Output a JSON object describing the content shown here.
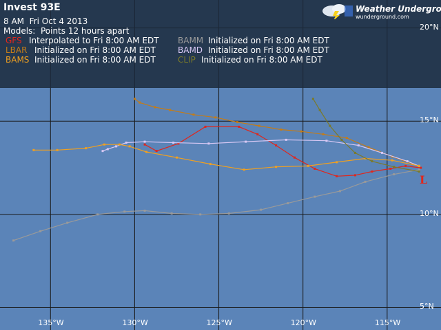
{
  "title": "Invest 93E",
  "subtitle": "8 AM  Fri Oct 4 2013",
  "models_line": "Models:  Points 12 hours apart",
  "legend_rows": [
    [
      {
        "name": "GFS",
        "desc": "Interpolated to Fri 8:00 AM EDT",
        "color": "#e0261c"
      },
      {
        "name": "BAMM",
        "desc": "Initialized on Fri 8:00 AM EDT",
        "color": "#9a9a9a"
      }
    ],
    [
      {
        "name": "LBAR",
        "desc": "Initialized on Fri 8:00 AM EDT",
        "color": "#c47c18"
      },
      {
        "name": "BAMD",
        "desc": "Initialized on Fri 8:00 AM EDT",
        "color": "#d8c8f4"
      }
    ],
    [
      {
        "name": "BAMS",
        "desc": "Initialized on Fri 8:00 AM EDT",
        "color": "#f0a020"
      },
      {
        "name": "CLIP",
        "desc": "Initialized on Fri 8:00 AM EDT",
        "color": "#7a7a2a"
      }
    ]
  ],
  "logo": {
    "text": "Weather Underground",
    "sub": "wunderground.com"
  },
  "storm_symbol": "L",
  "map": {
    "lon_range": [
      -138,
      -111.8
    ],
    "lat_range": [
      3.8,
      21.5
    ],
    "lon_ticks": [
      -135,
      -130,
      -125,
      -120,
      -115
    ],
    "lon_labels": [
      "135°W",
      "130°W",
      "125°W",
      "120°W",
      "115°W"
    ],
    "lat_ticks": [
      20,
      15,
      10,
      5
    ],
    "lat_labels": [
      "20°N",
      "15°N",
      "10°N",
      "5°N"
    ],
    "ocean_color": "#5b84b8",
    "grid_color": "#1a1a1a"
  },
  "chart_data": {
    "type": "line",
    "series": [
      {
        "name": "GFS",
        "color": "#e0261c",
        "points": [
          [
            -113,
            12.5
          ],
          [
            -113.9,
            12.6
          ],
          [
            -114.8,
            12.45
          ],
          [
            -115.9,
            12.3
          ],
          [
            -116.9,
            12.1
          ],
          [
            -118,
            12.05
          ],
          [
            -119.3,
            12.45
          ],
          [
            -120.5,
            13.05
          ],
          [
            -121.6,
            13.7
          ],
          [
            -122.7,
            14.3
          ],
          [
            -123.8,
            14.7
          ],
          [
            -125.8,
            14.7
          ],
          [
            -127.4,
            13.8
          ],
          [
            -128.7,
            13.4
          ],
          [
            -129.4,
            13.75
          ]
        ]
      },
      {
        "name": "BAMM",
        "color": "#9a9a9a",
        "points": [
          [
            -113.1,
            12.4
          ],
          [
            -114.6,
            12.15
          ],
          [
            -116.3,
            11.75
          ],
          [
            -117.8,
            11.25
          ],
          [
            -119.3,
            10.95
          ],
          [
            -120.9,
            10.6
          ],
          [
            -122.5,
            10.25
          ],
          [
            -124.4,
            10.05
          ],
          [
            -126.1,
            10.0
          ],
          [
            -127.8,
            10.05
          ],
          [
            -129.4,
            10.2
          ],
          [
            -130.6,
            10.15
          ],
          [
            -132.2,
            10.0
          ],
          [
            -134.0,
            9.55
          ],
          [
            -135.6,
            9.1
          ],
          [
            -137.2,
            8.6
          ]
        ]
      },
      {
        "name": "LBAR",
        "color": "#c47c18",
        "points": [
          [
            -113.1,
            12.6
          ],
          [
            -114.7,
            13.1
          ],
          [
            -116.1,
            13.6
          ],
          [
            -117.4,
            14.1
          ],
          [
            -118.8,
            14.3
          ],
          [
            -120.1,
            14.45
          ],
          [
            -121.3,
            14.55
          ],
          [
            -122.6,
            14.75
          ],
          [
            -123.9,
            14.95
          ],
          [
            -125.2,
            15.2
          ],
          [
            -126.5,
            15.35
          ],
          [
            -127.9,
            15.6
          ],
          [
            -128.8,
            15.75
          ],
          [
            -129.7,
            16.0
          ],
          [
            -130.0,
            16.2
          ]
        ]
      },
      {
        "name": "BAMD",
        "color": "#d8c8f4",
        "points": [
          [
            -113.1,
            12.6
          ],
          [
            -113.8,
            12.85
          ],
          [
            -115.3,
            13.3
          ],
          [
            -116.7,
            13.7
          ],
          [
            -118.6,
            13.95
          ],
          [
            -121.0,
            14.0
          ],
          [
            -123.4,
            13.9
          ],
          [
            -125.6,
            13.8
          ],
          [
            -127.7,
            13.85
          ],
          [
            -129.4,
            13.9
          ],
          [
            -130.5,
            13.85
          ],
          [
            -131.1,
            13.65
          ],
          [
            -131.6,
            13.5
          ],
          [
            -131.9,
            13.4
          ]
        ]
      },
      {
        "name": "BAMS",
        "color": "#f0a020",
        "points": [
          [
            -113.1,
            12.6
          ],
          [
            -114.7,
            12.9
          ],
          [
            -116.3,
            13.0
          ],
          [
            -118.0,
            12.8
          ],
          [
            -119.7,
            12.6
          ],
          [
            -121.6,
            12.55
          ],
          [
            -123.5,
            12.4
          ],
          [
            -125.5,
            12.7
          ],
          [
            -127.5,
            13.05
          ],
          [
            -129.3,
            13.35
          ],
          [
            -130.3,
            13.65
          ],
          [
            -130.9,
            13.75
          ],
          [
            -131.8,
            13.75
          ],
          [
            -132.9,
            13.55
          ],
          [
            -134.6,
            13.45
          ],
          [
            -136.0,
            13.45
          ]
        ]
      },
      {
        "name": "CLIP",
        "color": "#7a7a2a",
        "points": [
          [
            -113.1,
            12.3
          ],
          [
            -114.6,
            12.55
          ],
          [
            -115.9,
            12.85
          ],
          [
            -116.9,
            13.3
          ],
          [
            -117.7,
            14.0
          ],
          [
            -118.4,
            14.75
          ],
          [
            -119.0,
            15.6
          ],
          [
            -119.4,
            16.2
          ]
        ]
      }
    ]
  }
}
